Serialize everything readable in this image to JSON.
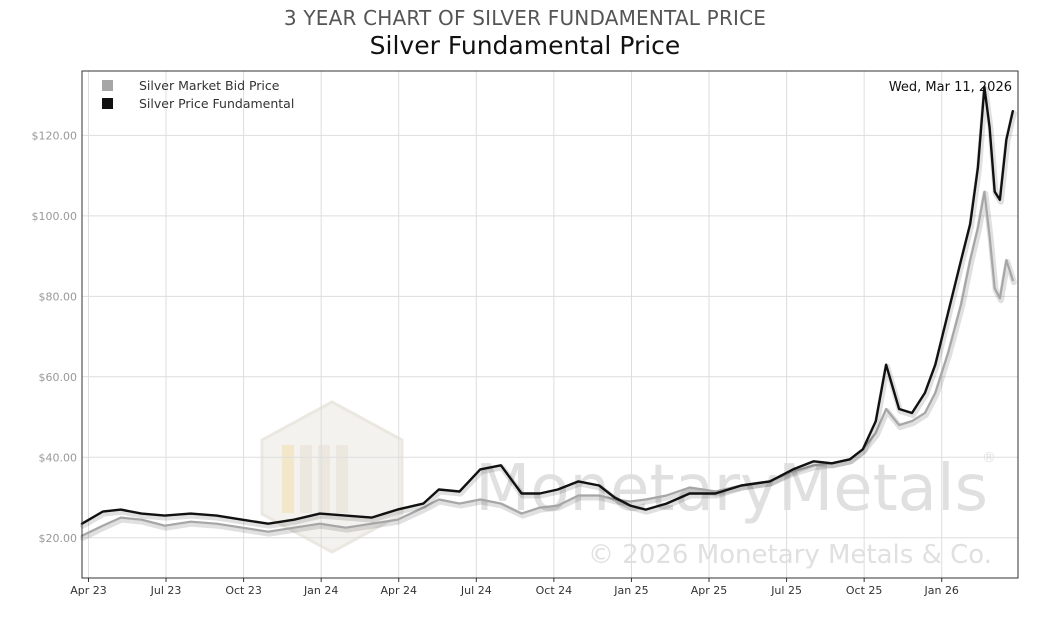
{
  "supertitle": "3 YEAR CHART OF SILVER FUNDAMENTAL PRICE",
  "chart_data": {
    "type": "line",
    "title": "Silver Fundamental Price",
    "date_label": "Wed, Mar 11, 2026",
    "x_tick_labels": [
      "Apr 23",
      "Jul 23",
      "Oct 23",
      "Jan 24",
      "Apr 24",
      "Jul 24",
      "Oct 24",
      "Jan 25",
      "Apr 25",
      "Jul 25",
      "Oct 25",
      "Jan 26"
    ],
    "x_ticks": [
      0.25,
      3.25,
      6.25,
      9.25,
      12.25,
      15.25,
      18.25,
      21.25,
      24.25,
      27.25,
      30.25,
      33.25
    ],
    "xlim": [
      0,
      36.2
    ],
    "y_tick_labels": [
      "$20.00",
      "$40.00",
      "$60.00",
      "$80.00",
      "$100.00",
      "$120.00"
    ],
    "y_ticks": [
      20,
      40,
      60,
      80,
      100,
      120
    ],
    "ylim": [
      10,
      136
    ],
    "grid": true,
    "legend_position": "top-left",
    "series": [
      {
        "name": "Silver Market Bid Price",
        "color": "#a6a6a6",
        "x": [
          0,
          0.8,
          1.5,
          2.3,
          3.2,
          4.2,
          5.2,
          6.2,
          7.2,
          8.2,
          9.2,
          10.2,
          11.2,
          12.2,
          13.2,
          13.8,
          14.6,
          15.4,
          16.2,
          17,
          17.7,
          18.4,
          19.2,
          20,
          20.6,
          21.2,
          21.8,
          22.6,
          23.5,
          24.5,
          25.5,
          26.6,
          27.5,
          28.3,
          29,
          29.7,
          30.2,
          30.7,
          31.1,
          31.6,
          32.1,
          32.6,
          33,
          33.5,
          34,
          34.35,
          34.65,
          34.9,
          35.1,
          35.3,
          35.5,
          35.75,
          36
        ],
        "y": [
          20.5,
          23,
          25,
          24.5,
          23,
          24,
          23.5,
          22.5,
          21.5,
          22.5,
          23.5,
          22.5,
          23.5,
          24.5,
          27.5,
          29.5,
          28.5,
          29.5,
          28.5,
          26,
          27.5,
          28,
          30.5,
          30.5,
          29.5,
          29,
          29.5,
          30.5,
          32.5,
          31.5,
          33,
          34,
          36.5,
          38,
          38.5,
          39.5,
          42,
          46,
          52,
          48,
          49,
          51,
          56,
          66,
          78,
          89,
          97,
          106,
          95,
          82,
          79.5,
          89,
          84
        ]
      },
      {
        "name": "Silver Price Fundamental",
        "color": "#111111",
        "x": [
          0,
          0.8,
          1.5,
          2.3,
          3.2,
          4.2,
          5.2,
          6.2,
          7.2,
          8.2,
          9.2,
          10.2,
          11.2,
          12.2,
          13.2,
          13.8,
          14.6,
          15.4,
          16.2,
          17,
          17.7,
          18.4,
          19.2,
          20,
          20.6,
          21.2,
          21.8,
          22.6,
          23.5,
          24.5,
          25.5,
          26.6,
          27.5,
          28.3,
          29,
          29.7,
          30.2,
          30.7,
          31.1,
          31.6,
          32.1,
          32.6,
          33,
          33.5,
          34,
          34.35,
          34.65,
          34.9,
          35.1,
          35.3,
          35.5,
          35.75,
          36
        ],
        "y": [
          23.5,
          26.5,
          27,
          26,
          25.5,
          26,
          25.5,
          24.5,
          23.5,
          24.5,
          26,
          25.5,
          25,
          27,
          28.5,
          32,
          31.5,
          37,
          38,
          31,
          31,
          32,
          34,
          33,
          30,
          28,
          27,
          28.5,
          31,
          31,
          33,
          34,
          37,
          39,
          38.5,
          39.5,
          42,
          49,
          63,
          52,
          51,
          56,
          63,
          76,
          89,
          98,
          112,
          132,
          122,
          106,
          104,
          119,
          126
        ]
      }
    ]
  },
  "legend": {
    "items": [
      {
        "label": "Silver Market Bid Price",
        "color": "#a6a6a6"
      },
      {
        "label": "Silver Price Fundamental",
        "color": "#111111"
      }
    ]
  },
  "watermark": {
    "brand": "MonetaryMetals",
    "registered": "®",
    "copyright": "© 2026 Monetary Metals & Co."
  }
}
